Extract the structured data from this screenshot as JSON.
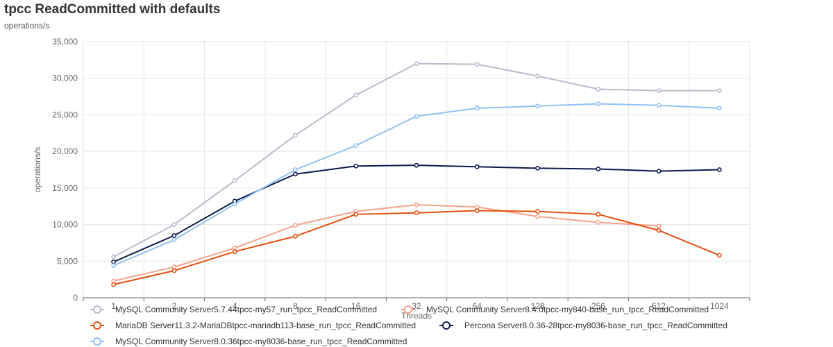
{
  "header": {
    "title": "tpcc ReadCommitted with defaults",
    "subtitle": "operations/s"
  },
  "chart_data": {
    "type": "line",
    "title": "tpcc ReadCommitted with defaults",
    "subtitle": "operations/s",
    "xlabel": "Threads",
    "ylabel": "operations/s",
    "ylim": [
      0,
      35000
    ],
    "y_ticks": [
      "0",
      "5,000",
      "10,000",
      "15,000",
      "20,000",
      "25,000",
      "30,000",
      "35,000"
    ],
    "categories": [
      "1",
      "2",
      "4",
      "8",
      "16",
      "32",
      "64",
      "128",
      "256",
      "512",
      "1024"
    ],
    "grid": true,
    "legend_position": "bottom",
    "series": [
      {
        "name": "MySQL Community Server5.7.44tpcc-my57_run_tpcc_ReadCommitted",
        "color": "#b8bccc",
        "values": [
          5600,
          10000,
          16000,
          22200,
          27700,
          32000,
          31900,
          30300,
          28500,
          28300,
          28300
        ]
      },
      {
        "name": "MySQL Community Server8.4.0tpcc-my840-base_run_tpcc_ReadCommitted",
        "color": "#f5a48c",
        "values": [
          2300,
          4200,
          6800,
          9900,
          11800,
          12700,
          12400,
          11100,
          10300,
          9800,
          null
        ]
      },
      {
        "name": "MariaDB Server11.3.2-MariaDBtpcc-mariadb113-base_run_tpcc_ReadCommitted",
        "color": "#e4500e",
        "values": [
          1800,
          3700,
          6300,
          8400,
          11400,
          11600,
          11900,
          11800,
          11400,
          9200,
          5800
        ]
      },
      {
        "name": "Percona Server8.0.36-28tpcc-my8036-base_run_tpcc_ReadCommitted",
        "color": "#0d1a4d",
        "values": [
          4900,
          8500,
          13200,
          16900,
          18000,
          18100,
          17900,
          17700,
          17600,
          17300,
          17500
        ]
      },
      {
        "name": "MySQL Community Server8.0.36tpcc-my8036-base_run_tpcc_ReadCommitted",
        "color": "#8fc2f5",
        "values": [
          4400,
          7900,
          12800,
          17500,
          20800,
          24800,
          25900,
          26200,
          26500,
          26300,
          25900
        ]
      }
    ]
  }
}
